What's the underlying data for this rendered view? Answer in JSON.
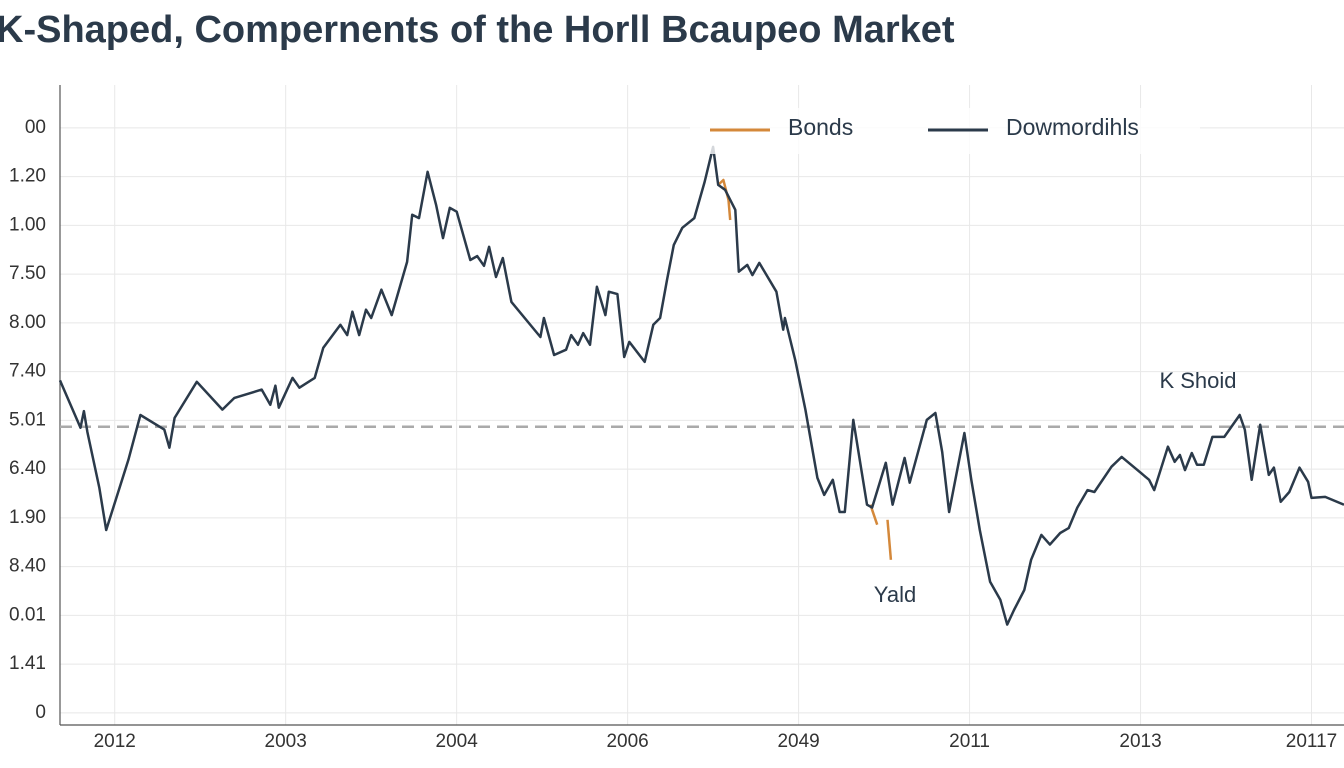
{
  "chart_data": {
    "type": "line",
    "title": "K-Shaped, Compernents of the Horll Bcaupeo Market",
    "xlim": [
      -0.32,
      7.19
    ],
    "xticks": [
      {
        "value": 0,
        "label": "2012"
      },
      {
        "value": 1,
        "label": "2003"
      },
      {
        "value": 2,
        "label": "2004"
      },
      {
        "value": 3,
        "label": "2006"
      },
      {
        "value": 4,
        "label": "2049"
      },
      {
        "value": 5,
        "label": "2011"
      },
      {
        "value": 6,
        "label": "2013"
      },
      {
        "value": 7,
        "label": "20117"
      }
    ],
    "ylim": [
      -0.25,
      12.88
    ],
    "yticks": [
      0,
      {
        "value": 1,
        "label": "1.41"
      },
      {
        "value": 2,
        "label": "0.01"
      },
      {
        "value": 3,
        "label": "8.40"
      },
      {
        "value": 4,
        "label": "1.90"
      },
      {
        "value": 5,
        "label": "6.40"
      },
      {
        "value": 6,
        "label": "5.01"
      },
      {
        "value": 7,
        "label": "7.40"
      },
      {
        "value": 8,
        "label": "8.00"
      },
      {
        "value": 9,
        "label": "7.50"
      },
      {
        "value": 10,
        "label": "1.00"
      },
      {
        "value": 11,
        "label": "1.20"
      },
      {
        "value": 12,
        "label": "00"
      }
    ],
    "grid": true,
    "legend": "top",
    "reference_line": 5.87,
    "annotations": [
      "K Shoid",
      "Yald"
    ],
    "series": [
      {
        "name": "Bonds",
        "color": "#d4883a",
        "x": [
          3.53,
          3.56,
          3.59,
          3.6,
          null,
          4.42,
          4.46,
          null,
          4.52,
          4.54
        ],
        "values": [
          10.83,
          10.93,
          10.52,
          10.11,
          null,
          4.27,
          3.86,
          null,
          3.96,
          3.14
        ]
      },
      {
        "name": "Dowmordihls",
        "color": "#2b3a4a",
        "x": [
          -0.32,
          -0.2,
          -0.18,
          -0.16,
          -0.09,
          -0.05,
          0.08,
          0.15,
          0.29,
          0.32,
          0.35,
          0.48,
          0.63,
          0.7,
          0.86,
          0.91,
          0.94,
          0.96,
          1.04,
          1.08,
          1.17,
          1.22,
          1.32,
          1.36,
          1.39,
          1.43,
          1.47,
          1.5,
          1.56,
          1.62,
          1.71,
          1.74,
          1.78,
          1.83,
          1.88,
          1.92,
          1.96,
          2.0,
          2.08,
          2.12,
          2.16,
          2.19,
          2.23,
          2.27,
          2.32,
          2.49,
          2.51,
          2.57,
          2.64,
          2.67,
          2.71,
          2.74,
          2.78,
          2.82,
          2.87,
          2.89,
          2.94,
          2.98,
          3.01,
          3.1,
          3.15,
          3.19,
          3.23,
          3.27,
          3.32,
          3.39,
          3.45,
          3.5,
          3.53,
          3.57,
          3.63,
          3.65,
          3.7,
          3.73,
          3.77,
          3.87,
          3.91,
          3.92,
          3.98,
          4.04,
          4.11,
          4.15,
          4.2,
          4.24,
          4.27,
          4.32,
          4.4,
          4.43,
          4.51,
          4.55,
          4.62,
          4.65,
          4.75,
          4.8,
          4.84,
          4.88,
          4.97,
          5.01,
          5.06,
          5.12,
          5.18,
          5.22,
          5.26,
          5.32,
          5.36,
          5.42,
          5.47,
          5.53,
          5.58,
          5.63,
          5.69,
          5.73,
          5.83,
          5.89,
          6.05,
          6.08,
          6.16,
          6.2,
          6.23,
          6.26,
          6.3,
          6.33,
          6.37,
          6.42,
          6.49,
          6.58,
          6.61,
          6.65,
          6.7,
          6.75,
          6.78,
          6.82,
          6.87,
          6.93,
          6.98,
          7.0,
          7.08,
          7.19
        ],
        "values": [
          6.82,
          5.85,
          6.19,
          5.76,
          4.62,
          3.75,
          5.19,
          6.11,
          5.81,
          5.44,
          6.05,
          6.79,
          6.22,
          6.46,
          6.63,
          6.32,
          6.71,
          6.26,
          6.87,
          6.67,
          6.87,
          7.49,
          7.96,
          7.75,
          8.23,
          7.75,
          8.27,
          8.1,
          8.68,
          8.16,
          9.25,
          10.22,
          10.15,
          11.1,
          10.42,
          9.74,
          10.36,
          10.28,
          9.29,
          9.37,
          9.17,
          9.56,
          8.94,
          9.33,
          8.43,
          7.71,
          8.1,
          7.34,
          7.45,
          7.75,
          7.55,
          7.79,
          7.55,
          8.74,
          8.16,
          8.64,
          8.59,
          7.3,
          7.61,
          7.2,
          7.96,
          8.1,
          8.88,
          9.6,
          9.95,
          10.15,
          10.89,
          11.61,
          10.83,
          10.73,
          10.32,
          9.05,
          9.19,
          8.98,
          9.23,
          8.64,
          7.86,
          8.1,
          7.24,
          6.22,
          4.82,
          4.47,
          4.78,
          4.12,
          4.12,
          6.01,
          4.27,
          4.21,
          5.13,
          4.27,
          5.23,
          4.72,
          6.01,
          6.15,
          5.35,
          4.12,
          5.74,
          4.78,
          3.75,
          2.69,
          2.32,
          1.81,
          2.11,
          2.52,
          3.14,
          3.65,
          3.45,
          3.69,
          3.79,
          4.21,
          4.57,
          4.53,
          5.05,
          5.25,
          4.78,
          4.57,
          5.46,
          5.15,
          5.29,
          4.98,
          5.33,
          5.09,
          5.09,
          5.66,
          5.66,
          6.11,
          5.81,
          4.78,
          5.91,
          4.88,
          5.03,
          4.33,
          4.53,
          5.03,
          4.74,
          4.41,
          4.43,
          4.27
        ]
      }
    ]
  }
}
